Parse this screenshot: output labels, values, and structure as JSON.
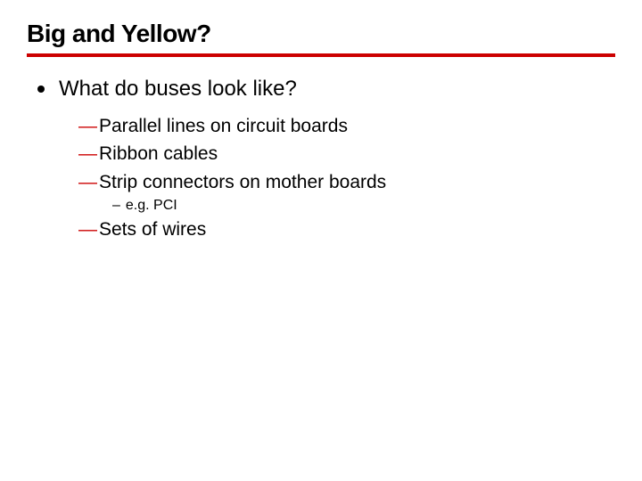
{
  "colors": {
    "background": "#ffffff",
    "title_text": "#000000",
    "underline": "#cc0000",
    "bullet_dot": "#000000",
    "body_text": "#000000",
    "em_dash": "#cc0000",
    "en_dash": "#000000"
  },
  "typography": {
    "title_fontsize": 28,
    "title_weight": 900,
    "level1_fontsize": 24,
    "level2_fontsize": 21,
    "level3_fontsize": 16,
    "font_family": "Verdana, Geneva, sans-serif"
  },
  "layout": {
    "slide_width": 720,
    "slide_height": 540,
    "underline_height": 4
  },
  "title": "Big and Yellow?",
  "content": {
    "level1": {
      "text": "What do buses look like?",
      "children": [
        {
          "text": "Parallel lines on circuit boards"
        },
        {
          "text": "Ribbon cables"
        },
        {
          "text": "Strip connectors on mother boards",
          "children": [
            {
              "text": "e.g. PCI"
            }
          ]
        },
        {
          "text": "Sets of wires"
        }
      ]
    }
  }
}
